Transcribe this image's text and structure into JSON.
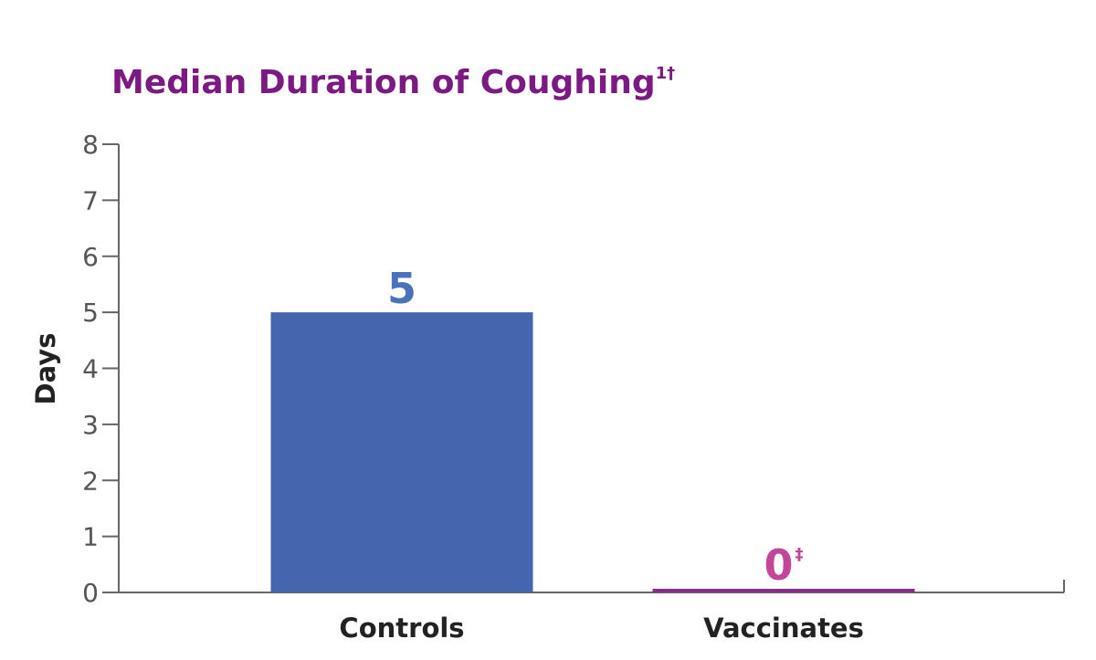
{
  "chart_data": {
    "type": "bar",
    "title": "Median Duration of Coughing",
    "title_superscript": "1†",
    "ylabel": "Days",
    "xlabel": "",
    "ylim": [
      0,
      8
    ],
    "yticks": [
      0,
      1,
      2,
      3,
      4,
      5,
      6,
      7,
      8
    ],
    "grid": false,
    "legend": "none",
    "categories": [
      "Controls",
      "Vaccinates"
    ],
    "values": [
      5,
      0
    ],
    "data_labels": [
      "5",
      "0"
    ],
    "data_label_superscripts": [
      "",
      "‡"
    ],
    "colors": {
      "title": "#7b1a82",
      "bars": [
        "#4565ae",
        "#8b2a8b"
      ],
      "labels": [
        "#4a72b8",
        "#c2479b"
      ],
      "axis": "#666666"
    }
  }
}
